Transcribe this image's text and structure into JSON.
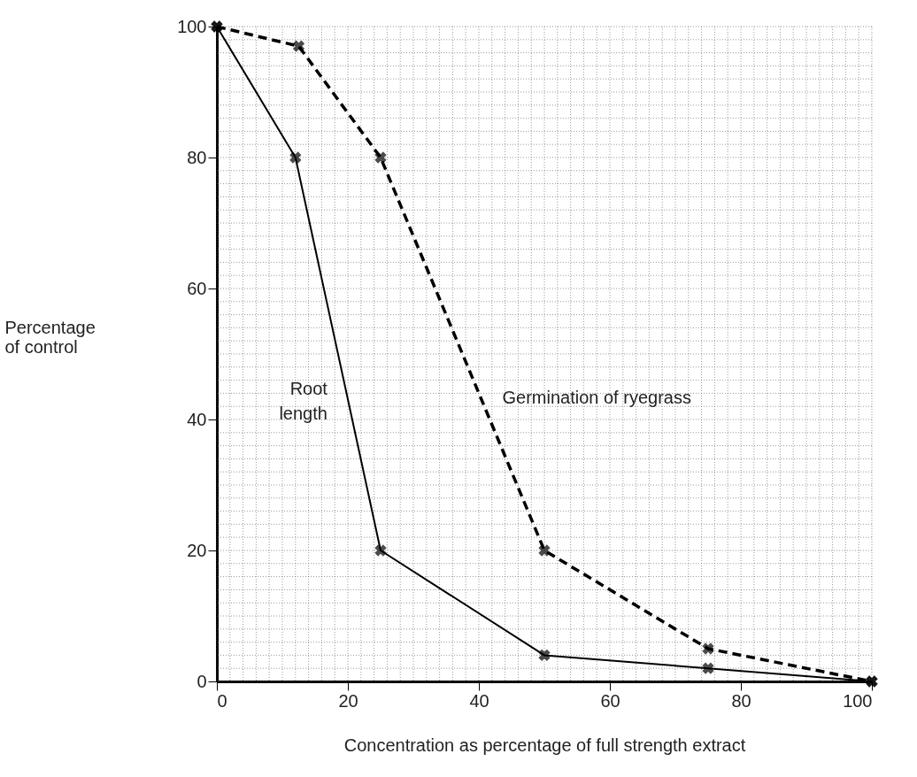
{
  "chart_data": {
    "type": "line",
    "xlabel": "Concentration as percentage of full strength extract",
    "ylabel": "Percentage\nof control",
    "xlim": [
      0,
      100
    ],
    "ylim": [
      0,
      100
    ],
    "xticks": [
      0,
      20,
      40,
      60,
      80,
      100
    ],
    "yticks": [
      0,
      20,
      40,
      60,
      80,
      100
    ],
    "grid": true,
    "legend": false,
    "marker": "cross",
    "series": [
      {
        "name": "Root\nlength",
        "color": "#000000",
        "line_style": "solid",
        "x": [
          0,
          12,
          25,
          50,
          75,
          100
        ],
        "values": [
          100,
          80,
          20,
          4,
          2,
          0
        ]
      },
      {
        "name": "Germination of ryegrass",
        "color": "#000000",
        "line_style": "dashed",
        "x": [
          0,
          12.5,
          25,
          50,
          75,
          100
        ],
        "values": [
          100,
          97,
          80,
          20,
          5,
          0
        ]
      }
    ]
  }
}
